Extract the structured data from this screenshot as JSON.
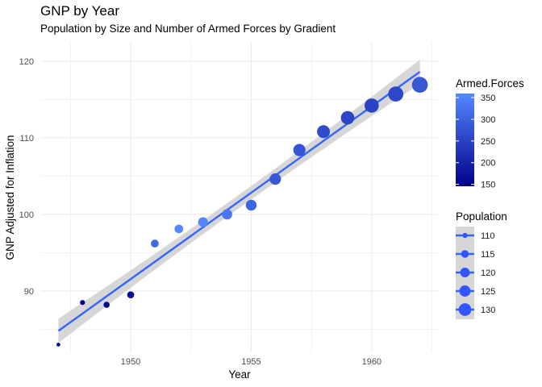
{
  "chart_data": {
    "type": "scatter",
    "title": "GNP by Year",
    "subtitle": "Population by Size and Number of Armed Forces by Gradient",
    "xlabel": "Year",
    "ylabel": "GNP Adjusted for Inflation",
    "xlim": [
      1946.25,
      1962.75
    ],
    "ylim": [
      82.0,
      122.5
    ],
    "x_ticks": [
      1950,
      1955,
      1960
    ],
    "y_ticks": [
      90,
      100,
      110,
      120
    ],
    "grid": true,
    "legend_position": "right",
    "points": [
      {
        "x": 1947,
        "y": 83.0,
        "armed_forces": 159.0,
        "population": 107.6
      },
      {
        "x": 1948,
        "y": 88.5,
        "armed_forces": 145.6,
        "population": 108.6
      },
      {
        "x": 1949,
        "y": 88.2,
        "armed_forces": 161.6,
        "population": 109.8
      },
      {
        "x": 1950,
        "y": 89.5,
        "armed_forces": 165.0,
        "population": 110.9
      },
      {
        "x": 1951,
        "y": 96.2,
        "armed_forces": 309.9,
        "population": 112.1
      },
      {
        "x": 1952,
        "y": 98.1,
        "armed_forces": 359.4,
        "population": 113.3
      },
      {
        "x": 1953,
        "y": 99.0,
        "armed_forces": 354.7,
        "population": 115.1
      },
      {
        "x": 1954,
        "y": 100.0,
        "armed_forces": 335.0,
        "population": 116.2
      },
      {
        "x": 1955,
        "y": 101.2,
        "armed_forces": 304.8,
        "population": 117.4
      },
      {
        "x": 1956,
        "y": 104.6,
        "armed_forces": 285.7,
        "population": 118.7
      },
      {
        "x": 1957,
        "y": 108.4,
        "armed_forces": 279.8,
        "population": 120.4
      },
      {
        "x": 1958,
        "y": 110.8,
        "armed_forces": 263.7,
        "population": 122.0
      },
      {
        "x": 1959,
        "y": 112.6,
        "armed_forces": 255.2,
        "population": 123.4
      },
      {
        "x": 1960,
        "y": 114.2,
        "armed_forces": 251.4,
        "population": 125.4
      },
      {
        "x": 1961,
        "y": 115.7,
        "armed_forces": 257.2,
        "population": 127.9
      },
      {
        "x": 1962,
        "y": 116.9,
        "armed_forces": 282.7,
        "population": 130.1
      }
    ],
    "trend_line": {
      "method": "lm",
      "x": [
        1947,
        1962
      ],
      "y": [
        84.8,
        118.6
      ],
      "ci_lower": [
        83.2,
        117.0
      ],
      "ci_upper": [
        86.4,
        120.2
      ],
      "color": "#3366FF"
    },
    "legend_color": {
      "title": "Armed.Forces",
      "ticks": [
        150,
        200,
        250,
        300,
        350
      ],
      "range": [
        145.6,
        359.4
      ],
      "low_color": "#00008B",
      "high_color": "#5588FF"
    },
    "legend_size": {
      "title": "Population",
      "values": [
        110,
        115,
        120,
        125,
        130
      ],
      "color": "#3355FF"
    }
  }
}
